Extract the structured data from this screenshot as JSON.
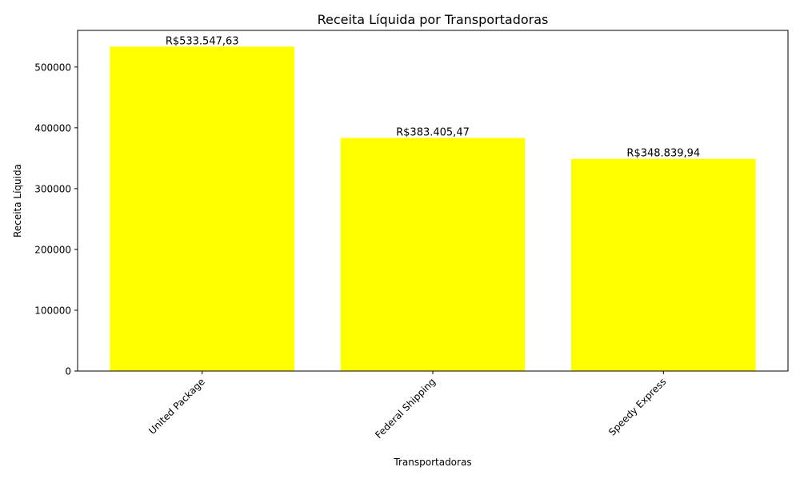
{
  "chart_data": {
    "type": "bar",
    "title": "Receita Líquida por Transportadoras",
    "xlabel": "Transportadoras",
    "ylabel": "Receita Líquida",
    "categories": [
      "United Package",
      "Federal Shipping",
      "Speedy Express"
    ],
    "values": [
      533547.63,
      383405.47,
      348839.94
    ],
    "value_labels": [
      "R$533.547,63",
      "R$383.405,47",
      "R$348.839,94"
    ],
    "yticks": [
      0,
      100000,
      200000,
      300000,
      400000,
      500000
    ],
    "ytick_labels": [
      "0",
      "100000",
      "200000",
      "300000",
      "400000",
      "500000"
    ],
    "ylim": [
      0,
      560224.99
    ],
    "grid": false,
    "legend": "none",
    "bar_color": "#ffff00"
  }
}
